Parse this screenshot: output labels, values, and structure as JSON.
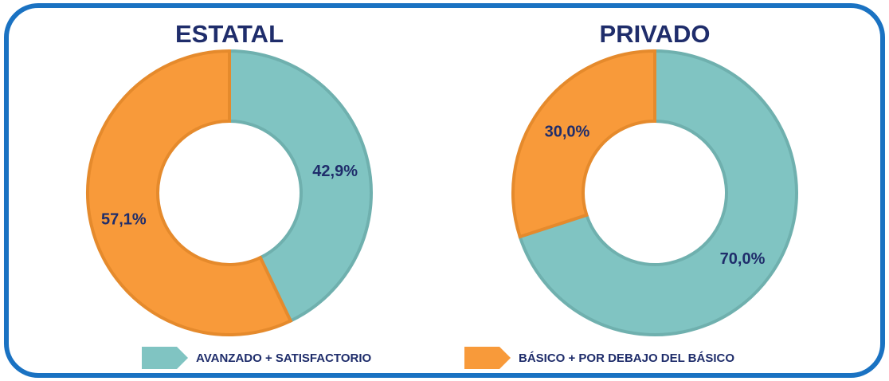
{
  "chart_data": [
    {
      "type": "donut",
      "title": "ESTATAL",
      "categories": [
        "AVANZADO + SATISFACTORIO",
        "BÁSICO + POR DEBAJO DEL BÁSICO"
      ],
      "values": [
        42.9,
        57.1
      ],
      "value_labels": [
        "42,9%",
        "57,1%"
      ],
      "colors": [
        "#80c4c2",
        "#f89a3a"
      ]
    },
    {
      "type": "donut",
      "title": "PRIVADO",
      "categories": [
        "AVANZADO + SATISFACTORIO",
        "BÁSICO + POR DEBAJO DEL BÁSICO"
      ],
      "values": [
        70.0,
        30.0
      ],
      "value_labels": [
        "70,0%",
        "30,0%"
      ],
      "colors": [
        "#80c4c2",
        "#f89a3a"
      ]
    }
  ]
}
